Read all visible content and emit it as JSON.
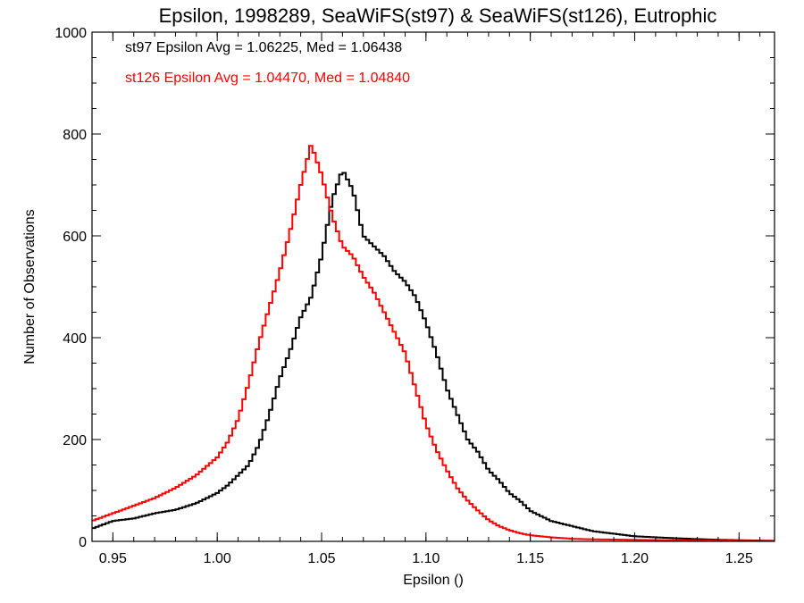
{
  "chart_data": {
    "type": "line",
    "step": true,
    "title": "Epsilon, 1998289, SeaWiFS(st97) & SeaWiFS(st126), Eutrophic",
    "xlabel": "Epsilon ()",
    "ylabel": "Number of Observations",
    "xlim": [
      0.94,
      1.267
    ],
    "ylim": [
      0,
      1000
    ],
    "x_ticks": [
      "0.95",
      "1.00",
      "1.05",
      "1.10",
      "1.15",
      "1.20",
      "1.25"
    ],
    "y_ticks": [
      "0",
      "200",
      "400",
      "600",
      "800",
      "1000"
    ],
    "grid": false,
    "annotations": [
      {
        "text": "st97 Epsilon Avg = 1.06225, Med = 1.06438",
        "color": "#000000"
      },
      {
        "text": "st126 Epsilon Avg = 1.04470, Med = 1.04840",
        "color": "#ff0000"
      }
    ],
    "series": [
      {
        "color": "#000000",
        "points": [
          [
            0.94,
            25
          ],
          [
            0.95,
            40
          ],
          [
            0.96,
            45
          ],
          [
            0.97,
            55
          ],
          [
            0.98,
            62
          ],
          [
            0.99,
            75
          ],
          [
            1.0,
            95
          ],
          [
            1.005,
            110
          ],
          [
            1.01,
            130
          ],
          [
            1.015,
            150
          ],
          [
            1.02,
            190
          ],
          [
            1.025,
            250
          ],
          [
            1.03,
            320
          ],
          [
            1.035,
            375
          ],
          [
            1.04,
            440
          ],
          [
            1.045,
            480
          ],
          [
            1.05,
            560
          ],
          [
            1.055,
            670
          ],
          [
            1.06,
            730
          ],
          [
            1.065,
            690
          ],
          [
            1.07,
            600
          ],
          [
            1.075,
            580
          ],
          [
            1.08,
            560
          ],
          [
            1.085,
            530
          ],
          [
            1.09,
            510
          ],
          [
            1.095,
            480
          ],
          [
            1.1,
            430
          ],
          [
            1.105,
            370
          ],
          [
            1.11,
            300
          ],
          [
            1.115,
            250
          ],
          [
            1.12,
            200
          ],
          [
            1.125,
            175
          ],
          [
            1.13,
            140
          ],
          [
            1.135,
            120
          ],
          [
            1.14,
            95
          ],
          [
            1.145,
            80
          ],
          [
            1.15,
            60
          ],
          [
            1.16,
            40
          ],
          [
            1.17,
            30
          ],
          [
            1.18,
            20
          ],
          [
            1.19,
            15
          ],
          [
            1.2,
            10
          ],
          [
            1.22,
            6
          ],
          [
            1.24,
            3
          ],
          [
            1.267,
            1
          ]
        ]
      },
      {
        "color": "#ff0000",
        "points": [
          [
            0.94,
            40
          ],
          [
            0.95,
            55
          ],
          [
            0.96,
            70
          ],
          [
            0.97,
            85
          ],
          [
            0.98,
            105
          ],
          [
            0.99,
            130
          ],
          [
            1.0,
            165
          ],
          [
            1.005,
            195
          ],
          [
            1.01,
            240
          ],
          [
            1.015,
            310
          ],
          [
            1.02,
            390
          ],
          [
            1.025,
            460
          ],
          [
            1.03,
            530
          ],
          [
            1.035,
            610
          ],
          [
            1.04,
            700
          ],
          [
            1.045,
            780
          ],
          [
            1.05,
            720
          ],
          [
            1.055,
            640
          ],
          [
            1.06,
            580
          ],
          [
            1.065,
            560
          ],
          [
            1.07,
            520
          ],
          [
            1.075,
            490
          ],
          [
            1.08,
            450
          ],
          [
            1.085,
            410
          ],
          [
            1.09,
            370
          ],
          [
            1.095,
            300
          ],
          [
            1.1,
            230
          ],
          [
            1.105,
            180
          ],
          [
            1.11,
            140
          ],
          [
            1.115,
            105
          ],
          [
            1.12,
            80
          ],
          [
            1.125,
            60
          ],
          [
            1.13,
            42
          ],
          [
            1.135,
            30
          ],
          [
            1.14,
            22
          ],
          [
            1.145,
            16
          ],
          [
            1.15,
            12
          ],
          [
            1.16,
            8
          ],
          [
            1.17,
            5
          ],
          [
            1.18,
            4
          ],
          [
            1.2,
            3
          ],
          [
            1.22,
            2
          ],
          [
            1.267,
            1
          ]
        ]
      }
    ]
  }
}
